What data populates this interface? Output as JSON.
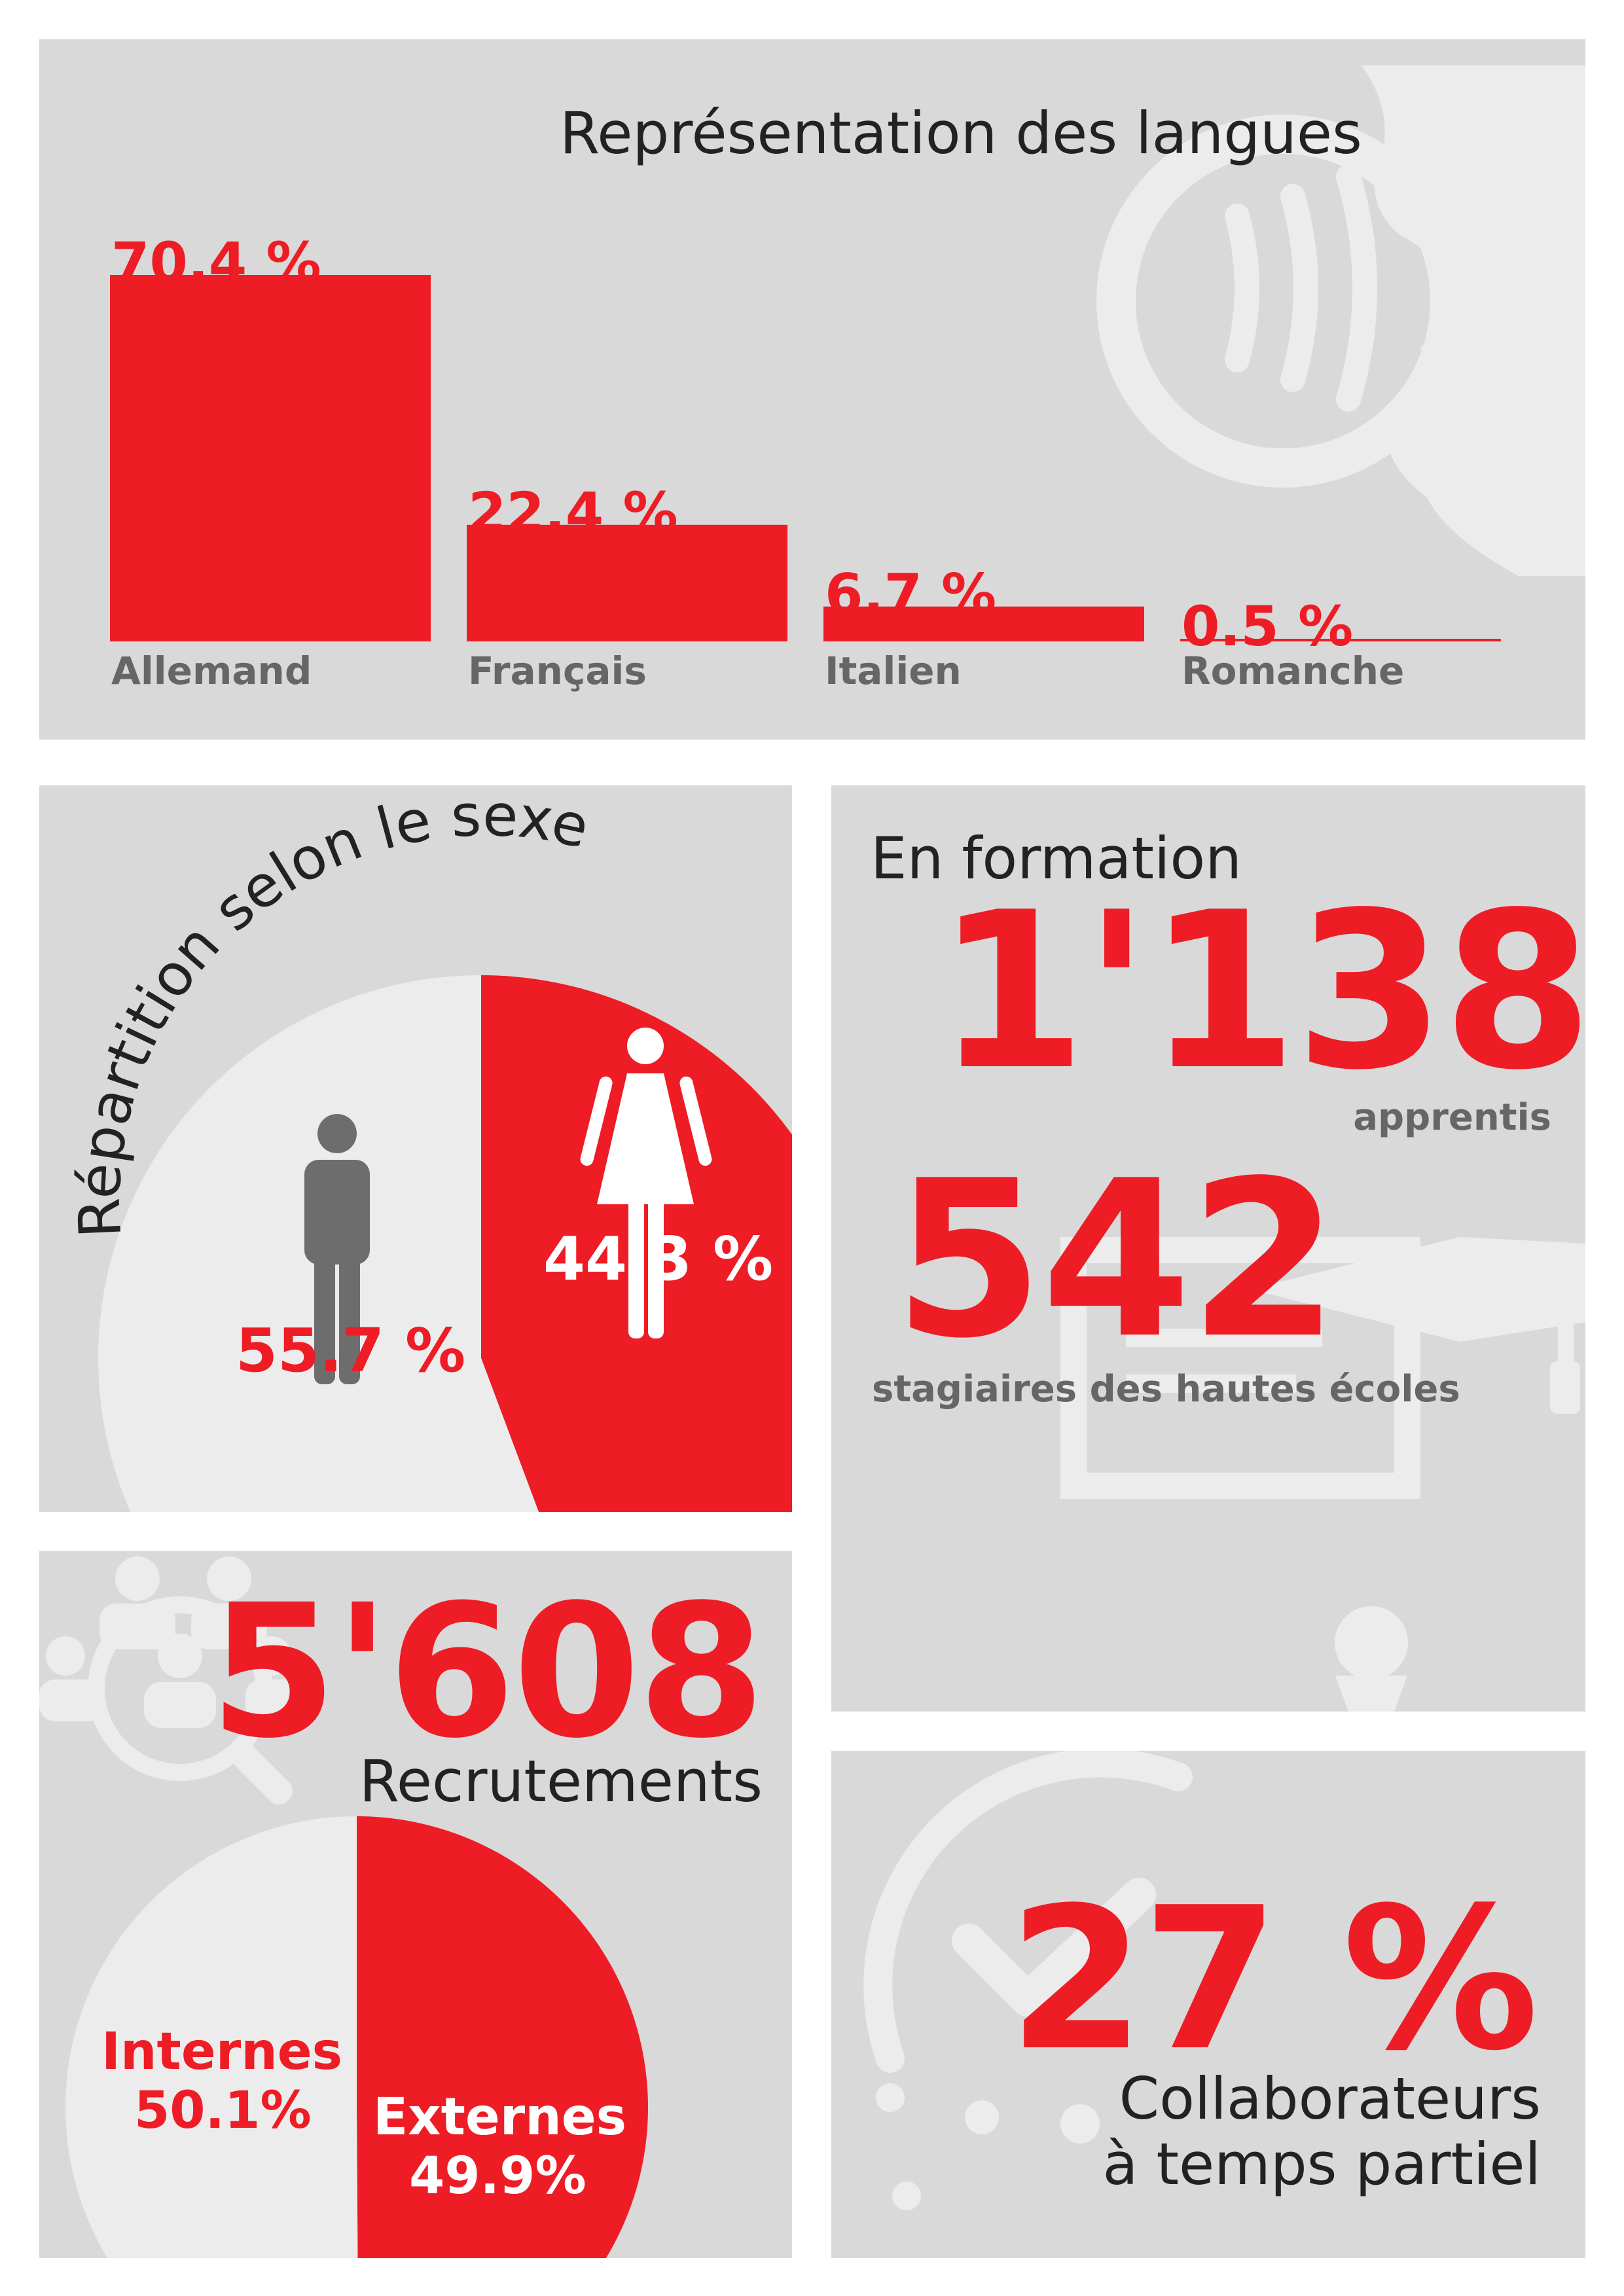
{
  "colors": {
    "accent": "#ee1c25",
    "panel": "#d9d9d9",
    "light": "#ececec",
    "dark_label": "#666666",
    "figure_dark": "#6d6d6d"
  },
  "chart_data": [
    {
      "type": "bar",
      "title": "Représentation des langues",
      "categories": [
        "Allemand",
        "Français",
        "Italien",
        "Romanche"
      ],
      "values": [
        70.4,
        22.4,
        6.7,
        0.5
      ],
      "value_labels": [
        "70.4 %",
        "22.4 %",
        "6.7 %",
        "0.5 %"
      ],
      "unit": "%",
      "ylim": [
        0,
        70.4
      ],
      "grid": false
    },
    {
      "type": "pie",
      "title": "Répartition selon le sexe",
      "categories": [
        "Hommes",
        "Femmes"
      ],
      "values": [
        55.7,
        44.3
      ],
      "value_labels": [
        "55.7 %",
        "44.3 %"
      ],
      "icons": [
        "man-icon",
        "woman-icon"
      ]
    },
    {
      "type": "pie",
      "title": "",
      "categories": [
        "Internes",
        "Externes"
      ],
      "values": [
        50.1,
        49.9
      ],
      "value_labels": [
        "50.1%",
        "49.9%"
      ]
    }
  ],
  "training": {
    "title": "En formation",
    "apprentices_value": "1'138",
    "apprentices_label": "apprentis",
    "interns_value": "542",
    "interns_label": "stagiaires des hautes écoles"
  },
  "recruitment": {
    "value": "5'608",
    "label": "Recrutements"
  },
  "part_time": {
    "value": "27 %",
    "label_line1": "Collaborateurs",
    "label_line2": "à temps partiel"
  },
  "icons": [
    "speaking-head-icon",
    "graduation-certificate-icon",
    "recruitment-search-icon",
    "clock-check-icon"
  ]
}
